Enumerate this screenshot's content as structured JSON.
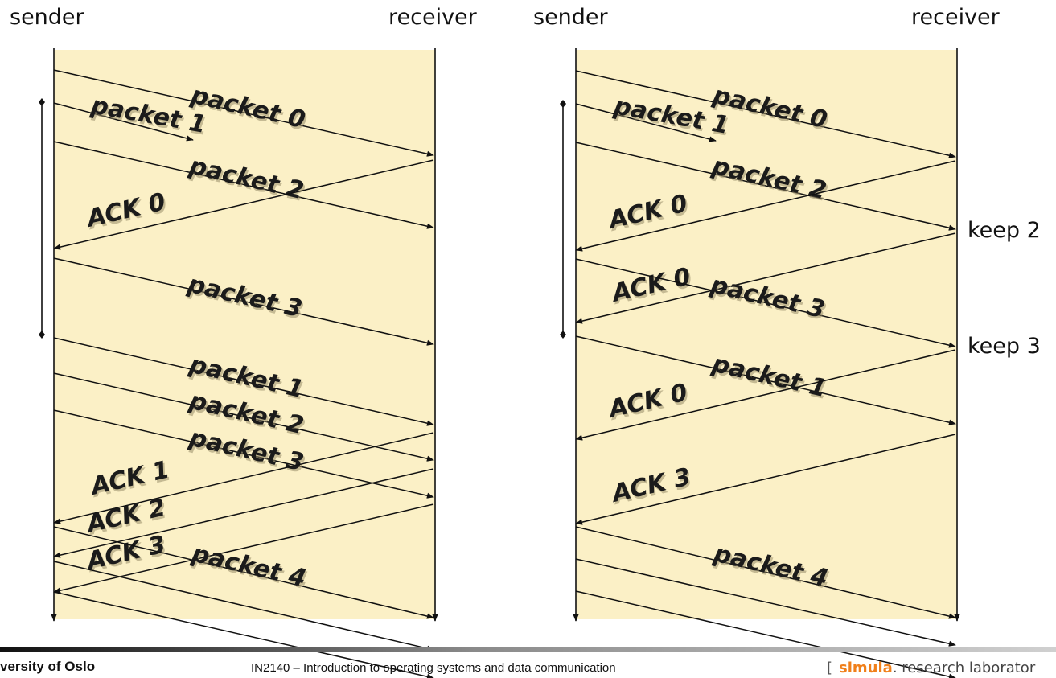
{
  "left": {
    "sender_label": "sender",
    "receiver_label": "receiver",
    "arrows": [
      {
        "label": "packet 0"
      },
      {
        "label": "packet 1"
      },
      {
        "label": "packet 2"
      },
      {
        "label": "ACK 0"
      },
      {
        "label": "packet 3"
      },
      {
        "label": "packet 1"
      },
      {
        "label": "packet 2"
      },
      {
        "label": "packet 3"
      },
      {
        "label": "ACK 1"
      },
      {
        "label": "ACK 2"
      },
      {
        "label": "ACK 3"
      },
      {
        "label": "packet 4"
      }
    ]
  },
  "right": {
    "sender_label": "sender",
    "receiver_label": "receiver",
    "arrows": [
      {
        "label": "packet 0"
      },
      {
        "label": "packet 1"
      },
      {
        "label": "packet 2"
      },
      {
        "label": "ACK 0"
      },
      {
        "label": "ACK 0"
      },
      {
        "label": "packet 3"
      },
      {
        "label": "packet 1"
      },
      {
        "label": "ACK 0"
      },
      {
        "label": "ACK 3"
      },
      {
        "label": "packet 4"
      }
    ],
    "side_notes": [
      "keep 2",
      "keep 3"
    ]
  },
  "footer": {
    "university": "versity of Oslo",
    "course": "IN2140 – Introduction to operating systems and data communication",
    "lab_open": "[",
    "lab_name": "simula",
    "lab_rest": ". research laborator"
  },
  "colors": {
    "panel": "#fbf0c6",
    "line": "#111111",
    "simula": "#f07f1a"
  }
}
